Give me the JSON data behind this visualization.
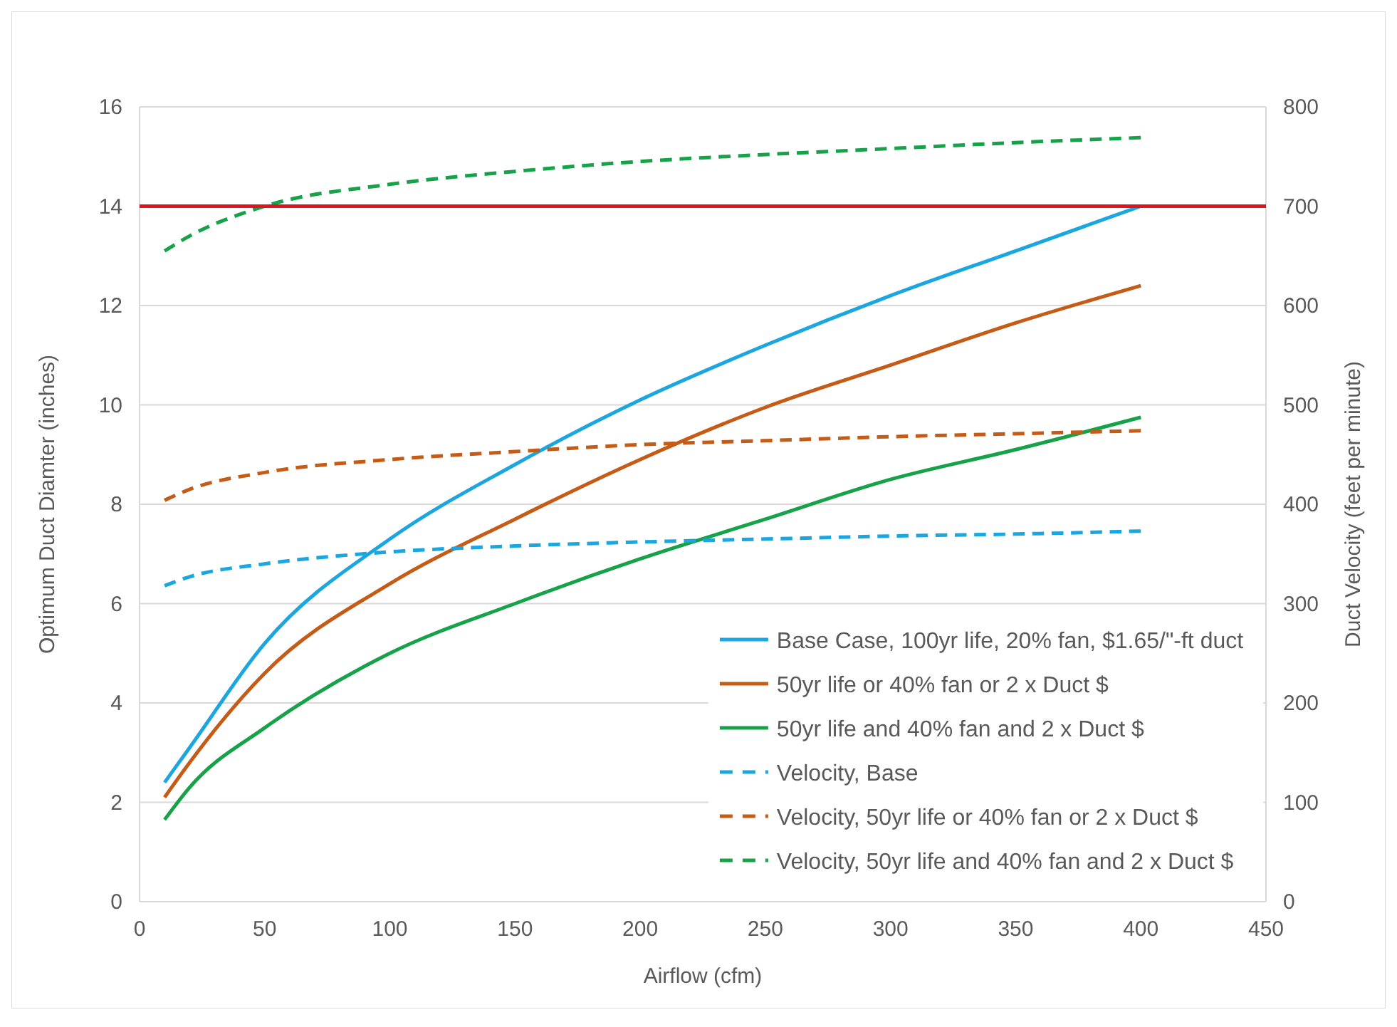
{
  "chart_data": {
    "type": "line",
    "xlabel": "Airflow (cfm)",
    "ylabel": "Optimum Duct Diamter (inches)",
    "y2label": "Duct Velocity (feet per minute)",
    "x": [
      10,
      20,
      50,
      100,
      150,
      200,
      250,
      300,
      350,
      400
    ],
    "xlim": [
      0,
      450
    ],
    "xticks": [
      0,
      50,
      100,
      150,
      200,
      250,
      300,
      350,
      400,
      450
    ],
    "ylim": [
      0,
      16
    ],
    "yticks": [
      0,
      2,
      4,
      6,
      8,
      10,
      12,
      14,
      16
    ],
    "y2lim": [
      0,
      800
    ],
    "y2ticks": [
      0,
      100,
      200,
      300,
      400,
      500,
      600,
      700,
      800
    ],
    "grid": "y",
    "legend": "bottom right",
    "ref_lines": [
      {
        "axis": "y",
        "value": 14,
        "color": "#e0141e"
      }
    ],
    "series": [
      {
        "name": "Base Case, 100yr life, 20% fan, $1.65/\"-ft duct",
        "color": "#1ca6df",
        "line_style": "solid",
        "values": [
          2.4,
          3.1,
          5.2,
          7.3,
          8.8,
          10.1,
          11.2,
          12.2,
          13.1,
          14.0
        ]
      },
      {
        "name": "50yr life or 40% fan or 2 x Duct $",
        "color": "#c45c17",
        "line_style": "solid",
        "values": [
          2.1,
          2.8,
          4.6,
          6.4,
          7.7,
          8.9,
          9.95,
          10.8,
          11.65,
          12.4
        ]
      },
      {
        "name": "50yr life and 40% fan and 2 x Duct $",
        "color": "#17a24a",
        "line_style": "solid",
        "values": [
          1.65,
          2.3,
          3.5,
          5.0,
          6.0,
          6.9,
          7.7,
          8.5,
          9.1,
          9.75
        ]
      },
      {
        "name": "Velocity, Base",
        "color": "#1ca6df",
        "line_style": "dashed",
        "axis": "y2",
        "values": [
          318,
          327,
          340,
          352,
          358,
          362,
          365,
          368,
          370,
          373
        ]
      },
      {
        "name": "Velocity, 50yr life or 40% fan or 2 x Duct $",
        "color": "#c45c17",
        "line_style": "dashed",
        "axis": "y2",
        "values": [
          404,
          415,
          432,
          445,
          453,
          460,
          464,
          468,
          471,
          474
        ]
      },
      {
        "name": "Velocity, 50yr life and 40% fan and 2 x Duct $",
        "color": "#17a24a",
        "line_style": "dashed",
        "axis": "y2",
        "values": [
          655,
          670,
          700,
          722,
          735,
          745,
          752,
          758,
          764,
          769
        ]
      }
    ]
  }
}
